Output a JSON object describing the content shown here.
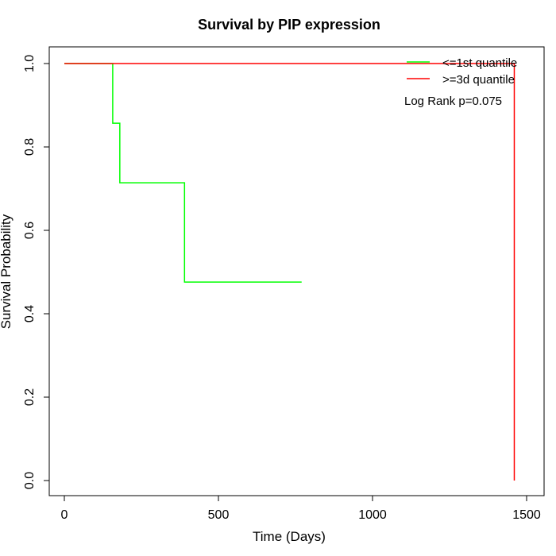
{
  "chart_data": {
    "type": "line",
    "title": "Survival by PIP expression",
    "xlabel": "Time (Days)",
    "ylabel": "Survival Probability",
    "xlim": [
      0,
      1500
    ],
    "ylim": [
      0.0,
      1.0
    ],
    "x_ticks": [
      0,
      500,
      1000,
      1500
    ],
    "x_tick_labels": [
      "0",
      "500",
      "1000",
      "1500"
    ],
    "y_ticks": [
      0.0,
      0.2,
      0.4,
      0.6,
      0.8,
      1.0
    ],
    "y_tick_labels": [
      "0.0",
      "0.2",
      "0.4",
      "0.6",
      "0.8",
      "1.0"
    ],
    "grid": false,
    "legend_position": "top-right",
    "series": [
      {
        "name": "<=1st quantile",
        "color": "#00ff00",
        "step": true,
        "x": [
          0,
          157,
          180,
          390,
          770
        ],
        "y": [
          1.0,
          0.857,
          0.714,
          0.476,
          0.476
        ]
      },
      {
        "name": ">=3d quantile",
        "color": "#ff0000",
        "step": true,
        "x": [
          0,
          1460,
          1460
        ],
        "y": [
          1.0,
          1.0,
          0.0
        ]
      }
    ],
    "annotation": "Log Rank p=0.075"
  }
}
